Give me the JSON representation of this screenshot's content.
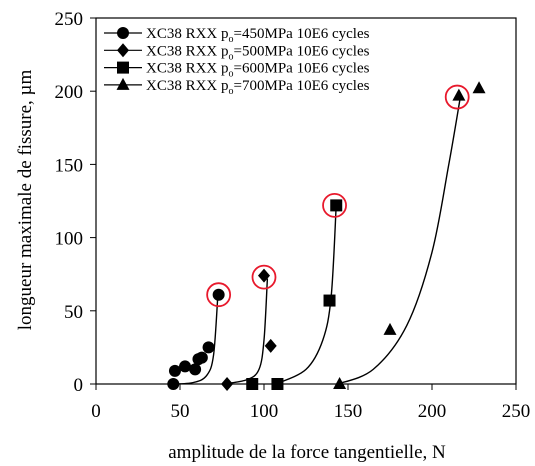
{
  "chart_data": {
    "type": "scatter",
    "xlabel": "amplitude de la force tangentielle, N",
    "ylabel": "longueur maximale de fissure, µm",
    "xlim": [
      0,
      250
    ],
    "ylim": [
      0,
      250
    ],
    "xticks": [
      0,
      50,
      100,
      150,
      200,
      250
    ],
    "yticks": [
      0,
      50,
      100,
      150,
      200,
      250
    ],
    "grid": false,
    "legend_position": "top-right",
    "series": [
      {
        "name": "XC38 RXX po=450MPa 10E6 cycles",
        "legend": {
          "pre": "XC38 RXX p",
          "sub": "o",
          "post": "=450MPa 10E6 cycles"
        },
        "marker": "circle",
        "x": [
          46,
          47,
          53,
          59,
          61,
          63,
          67,
          73
        ],
        "y": [
          0,
          9,
          12,
          10,
          17,
          18,
          25,
          61
        ],
        "curve_x": [
          45,
          58,
          66,
          70,
          72.5
        ],
        "curve_y": [
          0,
          1,
          6,
          20,
          60
        ],
        "highlight": {
          "x": 73,
          "y": 61
        }
      },
      {
        "name": "XC38 RXX po=500MPa 10E6 cycles",
        "legend": {
          "pre": "XC38 RXX p",
          "sub": "o",
          "post": "=500MPa 10E6 cycles"
        },
        "marker": "diamond",
        "x": [
          78,
          100,
          104
        ],
        "y": [
          0,
          74,
          26
        ],
        "curve_x": [
          76,
          90,
          97,
          100,
          102
        ],
        "curve_y": [
          0,
          3,
          10,
          30,
          72
        ],
        "highlight": {
          "x": 100,
          "y": 73
        }
      },
      {
        "name": "XC38 RXX po=600MPa 10E6 cycles",
        "legend": {
          "pre": "XC38 RXX p",
          "sub": "o",
          "post": "=600MPa 10E6 cycles"
        },
        "marker": "square",
        "x": [
          93,
          108,
          139,
          143
        ],
        "y": [
          0,
          0,
          57,
          122
        ],
        "curve_x": [
          107,
          125,
          135,
          140,
          143
        ],
        "curve_y": [
          0,
          10,
          30,
          60,
          122
        ],
        "highlight": {
          "x": 142,
          "y": 122
        }
      },
      {
        "name": "XC38 RXX po=700MPa 10E6 cycles",
        "legend": {
          "pre": "XC38 RXX p",
          "sub": "o",
          "post": "=700MPa 10E6 cycles"
        },
        "marker": "triangle",
        "x": [
          145,
          175,
          216,
          228
        ],
        "y": [
          0,
          37,
          197,
          202
        ],
        "curve_x": [
          144,
          165,
          185,
          200,
          210,
          217
        ],
        "curve_y": [
          0,
          10,
          40,
          90,
          150,
          197
        ],
        "highlight": {
          "x": 215,
          "y": 196
        }
      }
    ],
    "colors": {
      "marker": "#000000",
      "highlight": "#e8192c"
    }
  }
}
